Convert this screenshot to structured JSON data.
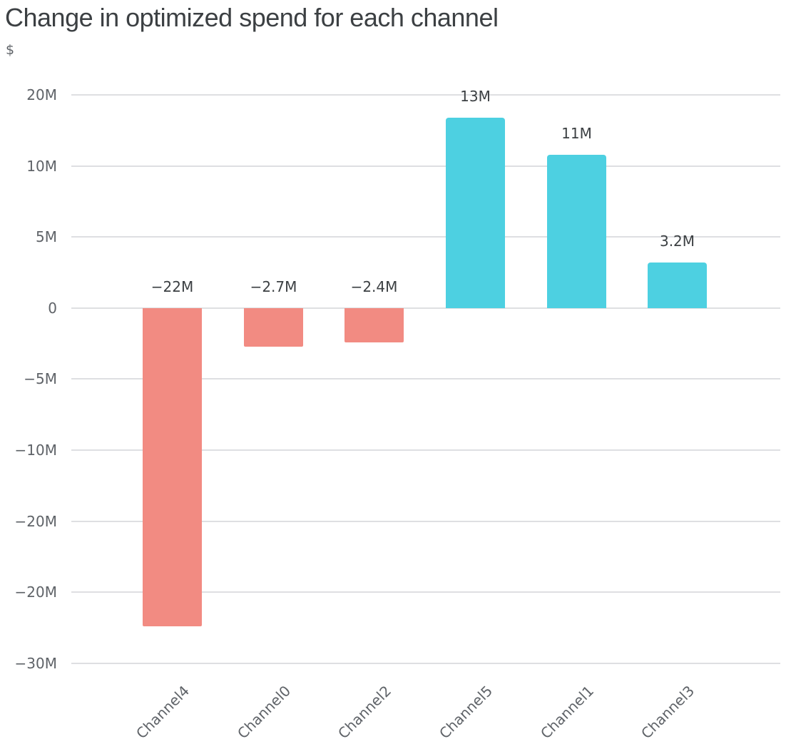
{
  "title": "Change in optimized spend for each channel",
  "y_axis_unit_label": "$",
  "colors": {
    "positive_bar": "#4DD0E1",
    "negative_bar": "#F28B82",
    "title_text": "#3C4043",
    "value_label_text": "#3C4043",
    "axis_text": "#5F6368",
    "gridline": "#DEDFE2",
    "background": "#FFFFFF"
  },
  "chart_data": {
    "type": "bar",
    "title": "Change in optimized spend for each channel",
    "xlabel": "",
    "ylabel": "$",
    "categories": [
      "Channel4",
      "Channel0",
      "Channel2",
      "Channel5",
      "Channel1",
      "Channel3"
    ],
    "values_millions": [
      -22.4,
      -2.7,
      -2.4,
      13.4,
      10.8,
      3.2
    ],
    "value_labels": [
      "−22M",
      "−2.7M",
      "−2.4M",
      "13M",
      "11M",
      "3.2M"
    ],
    "bar_colors": [
      "#F28B82",
      "#F28B82",
      "#F28B82",
      "#4DD0E1",
      "#4DD0E1",
      "#4DD0E1"
    ],
    "color_rule": "negative bars salmon #F28B82, positive bars cyan #4DD0E1",
    "y_tick_labels": [
      "20M",
      "10M",
      "5M",
      "0",
      "−5M",
      "−10M",
      "−20M",
      "−20M",
      "−30M"
    ],
    "y_tick_values_millions": [
      15,
      10,
      5,
      0,
      -5,
      -10,
      -15,
      -20,
      -25
    ],
    "ylim_millions": [
      -25,
      15
    ],
    "grid": true,
    "legend_position": "none"
  }
}
